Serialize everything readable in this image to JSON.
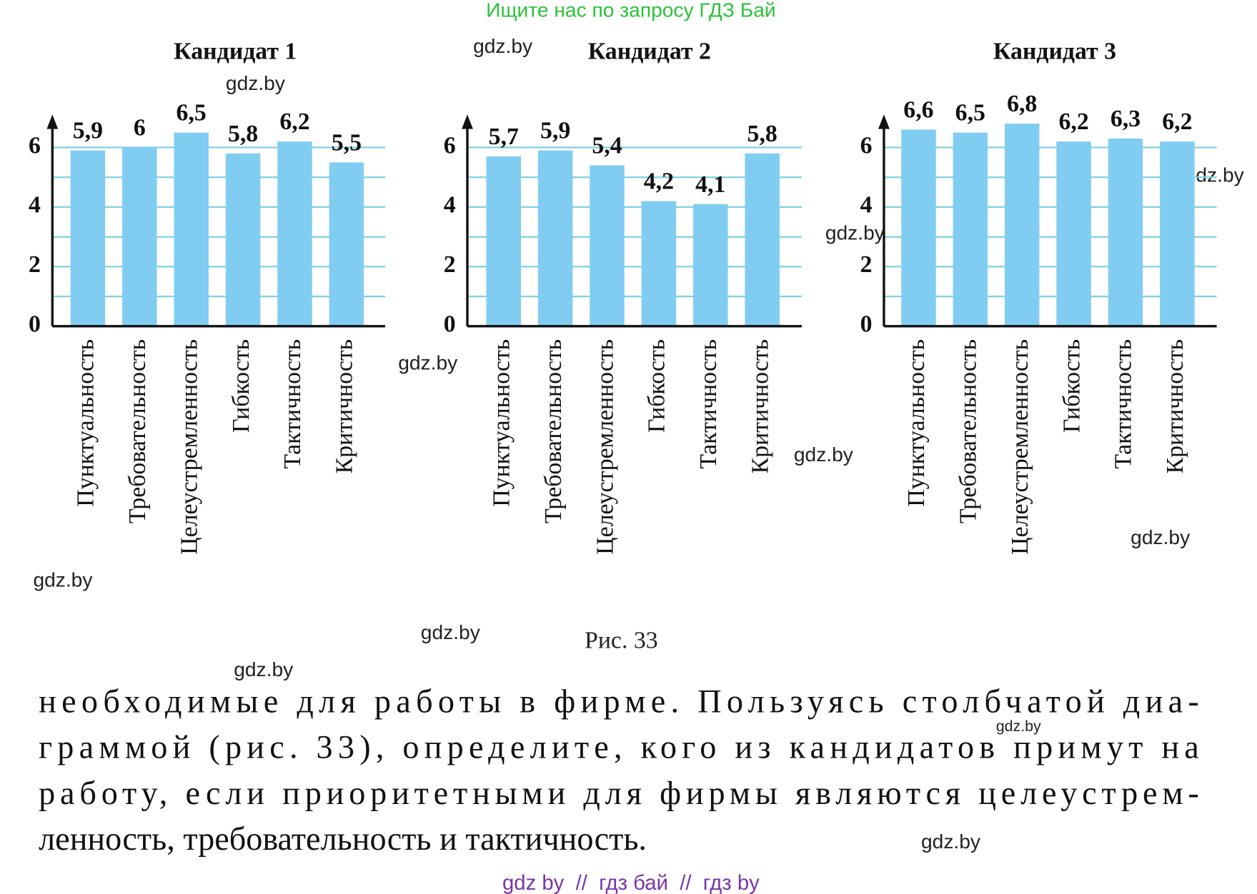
{
  "header": "Ищите нас по запросу ГДЗ Бай",
  "chart_data": [
    {
      "type": "bar",
      "title": "Кандидат 1",
      "categories": [
        "Пунктуальность",
        "Требовательность",
        "Целеустремленность",
        "Гибкость",
        "Тактичность",
        "Критичность"
      ],
      "values": [
        5.9,
        6,
        6.5,
        5.8,
        6.2,
        5.5
      ],
      "value_labels": [
        "5,9",
        "6",
        "6,5",
        "5,8",
        "6,2",
        "5,5"
      ],
      "color": "#80cdf1",
      "ylim": [
        0,
        7
      ],
      "yticks": [
        0,
        2,
        4,
        6
      ],
      "minor_yticks": [
        1,
        3,
        5
      ],
      "grid": true
    },
    {
      "type": "bar",
      "title": "Кандидат 2",
      "categories": [
        "Пунктуальность",
        "Требовательность",
        "Целеустремленность",
        "Гибкость",
        "Тактичность",
        "Критичность"
      ],
      "values": [
        5.7,
        5.9,
        5.4,
        4.2,
        4.1,
        5.8
      ],
      "value_labels": [
        "5,7",
        "5,9",
        "5,4",
        "4,2",
        "4,1",
        "5,8"
      ],
      "color": "#80cdf1",
      "ylim": [
        0,
        7
      ],
      "yticks": [
        0,
        2,
        4,
        6
      ],
      "minor_yticks": [
        1,
        3,
        5
      ],
      "grid": true
    },
    {
      "type": "bar",
      "title": "Кандидат 3",
      "categories": [
        "Пунктуальность",
        "Требовательность",
        "Целеустремленность",
        "Гибкость",
        "Тактичность",
        "Критичность"
      ],
      "values": [
        6.6,
        6.5,
        6.8,
        6.2,
        6.3,
        6.2
      ],
      "value_labels": [
        "6,6",
        "6,5",
        "6,8",
        "6,2",
        "6,3",
        "6,2"
      ],
      "color": "#80cdf1",
      "ylim": [
        0,
        7
      ],
      "yticks": [
        0,
        2,
        4,
        6
      ],
      "minor_yticks": [
        1,
        3,
        5
      ],
      "grid": true
    }
  ],
  "caption": "Рис. 33",
  "paragraph": [
    "необходимые для работы в фирме. Пользуясь столбчатой диа-",
    "граммой (рис. 33), определите, кого из кандидатов примут на",
    "работу, если приоритетными для фирмы являются целеустрем-",
    "ленность, требовательность и тактичность."
  ],
  "footer": "gdz by  //  гдз бай  //  гдз by",
  "watermarks": [
    "gdz.by",
    "gdz.by",
    "gdz.by",
    "gdz.by",
    "gdz.by",
    "gdz.by",
    "gdz.by",
    "gdz.by",
    "gdz.by",
    "gdz.by",
    "gdz.by",
    "gdz.by"
  ]
}
